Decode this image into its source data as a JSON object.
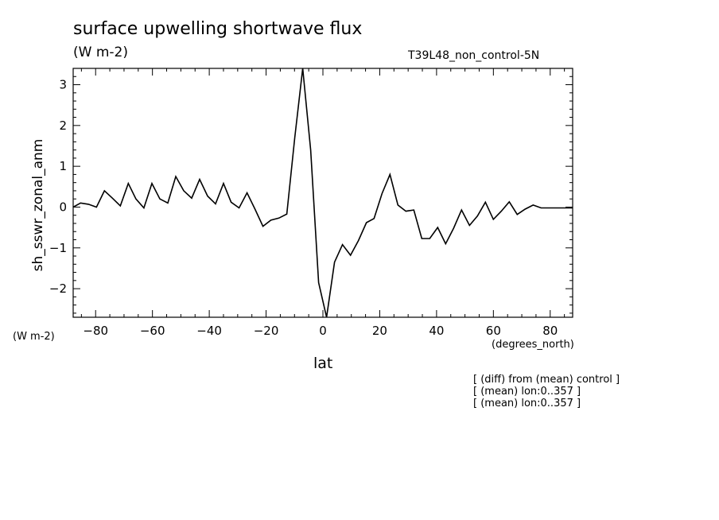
{
  "header": {
    "title": "surface upwelling shortwave flux",
    "units": "(W m-2)",
    "dataset": "T39L48_non_control-5N"
  },
  "axes": {
    "y_units": "(W m-2)",
    "x_units": "(degrees_north)"
  },
  "notes": [
    "[ (diff) from (mean) control ]",
    "[ (mean) lon:0..357 ]",
    "[ (mean) lon:0..357 ]"
  ],
  "chart_data": {
    "type": "line",
    "title": "surface upwelling shortwave flux",
    "xlabel": "lat",
    "ylabel": "sh_sswr_zonal_anm",
    "xlim": [
      -87.9,
      87.9
    ],
    "ylim": [
      -2.7,
      3.4
    ],
    "xticks": [
      -80,
      -60,
      -40,
      -20,
      0,
      20,
      40,
      60,
      80
    ],
    "xtick_labels": [
      "−80",
      "−60",
      "−40",
      "−20",
      "0",
      "20",
      "40",
      "60",
      "80"
    ],
    "yticks": [
      -2,
      -1,
      0,
      1,
      2,
      3
    ],
    "ytick_labels": [
      "−2",
      "−1",
      "0",
      "1",
      "2",
      "3"
    ],
    "grid": false,
    "series": [
      {
        "color": "#000000",
        "x": [
          -87.9,
          -85.3,
          -82.5,
          -79.7,
          -76.9,
          -74.1,
          -71.3,
          -68.5,
          -65.8,
          -63.0,
          -60.2,
          -57.4,
          -54.6,
          -51.8,
          -49.0,
          -46.2,
          -43.4,
          -40.6,
          -37.8,
          -35.0,
          -32.3,
          -29.5,
          -26.7,
          -23.9,
          -21.1,
          -18.3,
          -15.5,
          -12.7,
          -9.9,
          -7.1,
          -4.3,
          -1.5,
          1.3,
          4.1,
          6.9,
          9.7,
          12.5,
          15.3,
          18.0,
          20.8,
          23.6,
          26.4,
          29.2,
          32.0,
          34.8,
          37.6,
          40.4,
          43.2,
          46.0,
          48.8,
          51.6,
          54.4,
          57.2,
          60.0,
          62.8,
          65.6,
          68.4,
          71.2,
          74.0,
          76.8,
          79.6,
          82.4,
          85.2,
          87.9
        ],
        "y": [
          0.0,
          0.1,
          0.07,
          0.0,
          0.4,
          0.22,
          0.03,
          0.58,
          0.2,
          -0.02,
          0.58,
          0.2,
          0.1,
          0.75,
          0.4,
          0.22,
          0.68,
          0.27,
          0.08,
          0.58,
          0.12,
          -0.02,
          0.35,
          -0.05,
          -0.47,
          -0.32,
          -0.27,
          -0.17,
          1.7,
          3.4,
          1.4,
          -1.85,
          -2.7,
          -1.35,
          -0.92,
          -1.18,
          -0.82,
          -0.38,
          -0.28,
          0.33,
          0.8,
          0.05,
          -0.1,
          -0.07,
          -0.77,
          -0.77,
          -0.5,
          -0.9,
          -0.52,
          -0.07,
          -0.45,
          -0.22,
          0.12,
          -0.3,
          -0.1,
          0.13,
          -0.18,
          -0.05,
          0.05,
          -0.02,
          -0.02,
          -0.02,
          -0.02,
          -0.02
        ]
      }
    ]
  }
}
